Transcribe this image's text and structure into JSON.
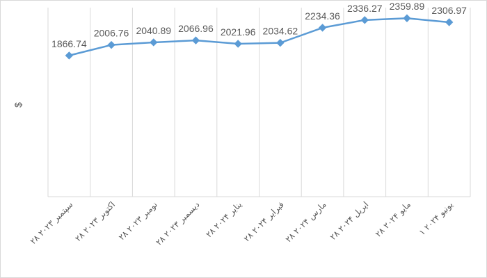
{
  "chart_data": {
    "type": "line",
    "title": "",
    "xlabel": "",
    "ylabel": "$",
    "categories": [
      "۲۸ سپتمبر ۲۰۲۳",
      "۲۸ اکتوبر ۲۰۲۳",
      "۲۸ نومبر ۲۰۲۳",
      "۲۸ دیسمبر ۲۰۲۳",
      "۲۸ ینایر ۲۰۲۴",
      "۲۸ فبرایر ۲۰۲۴",
      "۲۸ مارس ۲۰۲۴",
      "۲۸ اپریل ۲۰۲۴",
      "۲۸ مایو ۲۰۲۴",
      "۱ یونیو ۲۰۲۴"
    ],
    "series": [
      {
        "values": [
          1866.74,
          2006.76,
          2040.89,
          2066.96,
          2021.96,
          2034.62,
          2234.36,
          2336.27,
          2359.89,
          2306.97
        ],
        "color": "#5B9BD5"
      }
    ],
    "data_labels": [
      "1866.74",
      "2006.76",
      "2040.89",
      "2066.96",
      "2021.96",
      "2034.62",
      "2234.36",
      "2336.27",
      "2359.89",
      "2306.97"
    ],
    "ylim": [
      0,
      2500
    ],
    "grid": {
      "vertical": true,
      "horizontal": false
    },
    "gridline_color": "#d9d9d9",
    "legend": "none"
  }
}
